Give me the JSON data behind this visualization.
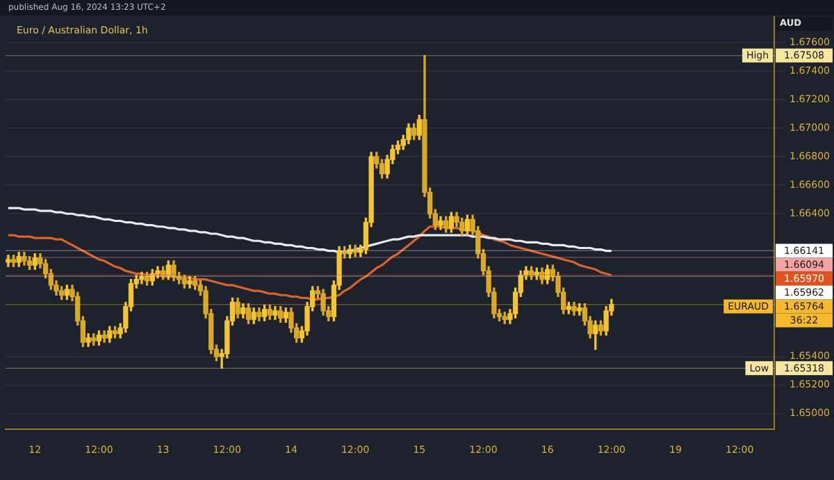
{
  "chart_data": {
    "type": "candlestick",
    "title": "Euro / Australian Dollar, 1h",
    "subtitle": "published Aug 16, 2024 13:23 UTC+2",
    "ylabel": "AUD",
    "colors": [
      "#f5c431",
      "#d9a826",
      "#f5c431",
      "#d9a826",
      "#d9a826",
      "#f5c431",
      "#d9a826",
      "#d9a826",
      "#d9a826",
      "#d9a826",
      "#d9a826",
      "#f5c431",
      "#d9a826",
      "#d9a826",
      "#d9a826",
      "#f5c431",
      "#d9a826",
      "#f5c431",
      "#d9a826",
      "#f5c431",
      "#d9a826",
      "#f5c431",
      "#f5c431",
      "#f5c431",
      "#f5c431",
      "#f5c431",
      "#d9a826",
      "#f5c431",
      "#f5c431",
      "#d9a826",
      "#f5c431",
      "#d9a826",
      "#d9a826",
      "#d9a826",
      "#f5c431",
      "#d9a826",
      "#d9a826",
      "#d9a826",
      "#d9a826",
      "#d9a826",
      "#f5c431",
      "#f5c431",
      "#f5c431",
      "#d9a826",
      "#f5c431",
      "#d9a826",
      "#f5c431",
      "#d9a826",
      "#f5c431",
      "#d9a826",
      "#f5c431",
      "#d9a826",
      "#f5c431",
      "#d9a826",
      "#d9a826",
      "#f5c431",
      "#f5c431",
      "#f5c431",
      "#d9a826",
      "#d9a826",
      "#d9a826",
      "#f5c431",
      "#f5c431",
      "#d9a826",
      "#f5c431",
      "#d9a826",
      "#f5c431",
      "#f5c431",
      "#f5c431",
      "#d9a826",
      "#d9a826",
      "#f5c431",
      "#f5c431",
      "#f5c431",
      "#f5c431",
      "#f5c431",
      "#d9a826",
      "#f5c431",
      "#d9a826",
      "#d9a826",
      "#d9a826",
      "#f5c431",
      "#d9a826",
      "#f5c431",
      "#d9a826",
      "#d9a826",
      "#f5c431",
      "#d9a826",
      "#d9a826",
      "#d9a826",
      "#d9a826",
      "#d9a826",
      "#d9a826",
      "#d9a826",
      "#f5c431",
      "#f5c431",
      "#f5c431",
      "#f5c431",
      "#d9a826",
      "#f5c431",
      "#d9a826",
      "#f5c431",
      "#d9a826",
      "#d9a826",
      "#d9a826",
      "#f5c431",
      "#d9a826",
      "#f5c431",
      "#d9a826",
      "#d9a826",
      "#f5c431",
      "#d9a826",
      "#f5c431",
      "#f5c431",
      null,
      null,
      null,
      null,
      null,
      null,
      null,
      null,
      null,
      null,
      null,
      null,
      null,
      null,
      null,
      null,
      null,
      null,
      null,
      null,
      null,
      null,
      null,
      null,
      null,
      null,
      null,
      null,
      null,
      null
    ],
    "categories": [
      null,
      null,
      null,
      null,
      null,
      "12",
      null,
      null,
      null,
      null,
      null,
      null,
      null,
      null,
      null,
      null,
      null,
      "12:00",
      null,
      null,
      null,
      null,
      null,
      null,
      null,
      null,
      null,
      null,
      null,
      "13",
      null,
      null,
      null,
      null,
      null,
      null,
      null,
      null,
      null,
      null,
      null,
      "12:00",
      null,
      null,
      null,
      null,
      null,
      null,
      null,
      null,
      null,
      null,
      null,
      "14",
      null,
      null,
      null,
      null,
      null,
      null,
      null,
      null,
      null,
      null,
      null,
      "12:00",
      null,
      null,
      null,
      null,
      null,
      null,
      null,
      null,
      null,
      null,
      null,
      "15",
      null,
      null,
      null,
      null,
      null,
      null,
      null,
      null,
      null,
      null,
      null,
      "12:00",
      null,
      null,
      null,
      null,
      null,
      null,
      null,
      null,
      null,
      null,
      null,
      "16",
      null,
      null,
      null,
      null,
      null,
      null,
      null,
      null,
      null,
      null,
      null,
      "12:00",
      null,
      null,
      null,
      null,
      null,
      null,
      null,
      null,
      null,
      null,
      null,
      "19",
      null,
      null,
      null,
      null,
      null,
      null,
      null,
      null,
      null,
      null,
      null,
      "12:00",
      null,
      null,
      null,
      null,
      null,
      null
    ],
    "ohlc": [
      [
        1.6606,
        1.6611,
        1.6603,
        1.6608
      ],
      [
        1.6608,
        1.6611,
        1.6603,
        1.6606
      ],
      [
        1.6606,
        1.6613,
        1.6603,
        1.661
      ],
      [
        1.661,
        1.6613,
        1.6604,
        1.6607
      ],
      [
        1.6607,
        1.661,
        1.6601,
        1.6604
      ],
      [
        1.6604,
        1.6612,
        1.6601,
        1.6609
      ],
      [
        1.6609,
        1.6612,
        1.6602,
        1.6605
      ],
      [
        1.6605,
        1.6608,
        1.6595,
        1.6598
      ],
      [
        1.6598,
        1.6601,
        1.6587,
        1.659
      ],
      [
        1.659,
        1.6593,
        1.6583,
        1.6586
      ],
      [
        1.6586,
        1.6589,
        1.658,
        1.6583
      ],
      [
        1.6583,
        1.659,
        1.658,
        1.6587
      ],
      [
        1.6587,
        1.659,
        1.6579,
        1.6582
      ],
      [
        1.6582,
        1.6585,
        1.6562,
        1.6565
      ],
      [
        1.6565,
        1.6568,
        1.6547,
        1.655
      ],
      [
        1.655,
        1.6556,
        1.6547,
        1.6553
      ],
      [
        1.6553,
        1.6556,
        1.6548,
        1.6551
      ],
      [
        1.6551,
        1.6558,
        1.6548,
        1.6555
      ],
      [
        1.6555,
        1.6558,
        1.655,
        1.6553
      ],
      [
        1.6553,
        1.6561,
        1.655,
        1.6558
      ],
      [
        1.6558,
        1.6561,
        1.6553,
        1.6556
      ],
      [
        1.6556,
        1.6563,
        1.6553,
        1.656
      ],
      [
        1.656,
        1.6578,
        1.6557,
        1.6575
      ],
      [
        1.6575,
        1.6594,
        1.6572,
        1.6591
      ],
      [
        1.6591,
        1.6597,
        1.6588,
        1.6594
      ],
      [
        1.6594,
        1.6599,
        1.6591,
        1.6596
      ],
      [
        1.6596,
        1.6599,
        1.659,
        1.6593
      ],
      [
        1.6593,
        1.6601,
        1.659,
        1.6598
      ],
      [
        1.6598,
        1.6603,
        1.6595,
        1.66
      ],
      [
        1.66,
        1.6603,
        1.6594,
        1.6597
      ],
      [
        1.6597,
        1.6607,
        1.6594,
        1.6604
      ],
      [
        1.6604,
        1.6607,
        1.6593,
        1.6596
      ],
      [
        1.6596,
        1.6599,
        1.6591,
        1.6594
      ],
      [
        1.6594,
        1.6597,
        1.6588,
        1.6591
      ],
      [
        1.6591,
        1.6596,
        1.6588,
        1.6593
      ],
      [
        1.6593,
        1.6596,
        1.6587,
        1.659
      ],
      [
        1.659,
        1.6593,
        1.6583,
        1.6586
      ],
      [
        1.6586,
        1.6589,
        1.6567,
        1.657
      ],
      [
        1.657,
        1.6573,
        1.6542,
        1.6545
      ],
      [
        1.6545,
        1.6548,
        1.6537,
        1.654
      ],
      [
        1.654,
        1.6545,
        1.65318,
        1.6542
      ],
      [
        1.6542,
        1.6568,
        1.6539,
        1.6565
      ],
      [
        1.6565,
        1.6581,
        1.6562,
        1.6578
      ],
      [
        1.6578,
        1.6581,
        1.6567,
        1.657
      ],
      [
        1.657,
        1.6577,
        1.6567,
        1.6574
      ],
      [
        1.6574,
        1.6577,
        1.6563,
        1.6566
      ],
      [
        1.6566,
        1.6574,
        1.6563,
        1.6571
      ],
      [
        1.6571,
        1.6574,
        1.6565,
        1.6568
      ],
      [
        1.6568,
        1.6576,
        1.6565,
        1.6573
      ],
      [
        1.6573,
        1.6576,
        1.6566,
        1.6569
      ],
      [
        1.6569,
        1.6575,
        1.6566,
        1.6572
      ],
      [
        1.6572,
        1.6575,
        1.6564,
        1.6567
      ],
      [
        1.6567,
        1.6574,
        1.6564,
        1.6571
      ],
      [
        1.6571,
        1.6574,
        1.6557,
        1.656
      ],
      [
        1.656,
        1.6563,
        1.655,
        1.6553
      ],
      [
        1.6553,
        1.6561,
        1.655,
        1.6558
      ],
      [
        1.6558,
        1.6578,
        1.6555,
        1.6575
      ],
      [
        1.6575,
        1.6589,
        1.6572,
        1.6586
      ],
      [
        1.6586,
        1.6589,
        1.6581,
        1.6584
      ],
      [
        1.6584,
        1.6587,
        1.6569,
        1.6572
      ],
      [
        1.6572,
        1.6575,
        1.6565,
        1.6568
      ],
      [
        1.6568,
        1.6593,
        1.6565,
        1.659
      ],
      [
        1.659,
        1.6617,
        1.6587,
        1.6614
      ],
      [
        1.6614,
        1.6617,
        1.6609,
        1.6612
      ],
      [
        1.6612,
        1.6618,
        1.6609,
        1.6615
      ],
      [
        1.6615,
        1.6618,
        1.661,
        1.6613
      ],
      [
        1.6613,
        1.6618,
        1.661,
        1.6615
      ],
      [
        1.6615,
        1.6637,
        1.6612,
        1.6634
      ],
      [
        1.6634,
        1.6683,
        1.6631,
        1.668
      ],
      [
        1.668,
        1.6683,
        1.6672,
        1.6675
      ],
      [
        1.6675,
        1.6678,
        1.6665,
        1.6668
      ],
      [
        1.6668,
        1.6681,
        1.6665,
        1.6678
      ],
      [
        1.6678,
        1.6688,
        1.6675,
        1.6685
      ],
      [
        1.6685,
        1.6691,
        1.6682,
        1.6688
      ],
      [
        1.6688,
        1.6695,
        1.6685,
        1.6692
      ],
      [
        1.6692,
        1.6703,
        1.6689,
        1.67
      ],
      [
        1.67,
        1.6703,
        1.6692,
        1.6695
      ],
      [
        1.6695,
        1.6709,
        1.6692,
        1.6706
      ],
      [
        1.6706,
        1.67508,
        1.6652,
        1.6655
      ],
      [
        1.6655,
        1.6658,
        1.6637,
        1.664
      ],
      [
        1.664,
        1.6643,
        1.6629,
        1.6632
      ],
      [
        1.6632,
        1.6638,
        1.6629,
        1.6635
      ],
      [
        1.6635,
        1.6638,
        1.6627,
        1.663
      ],
      [
        1.663,
        1.6641,
        1.6627,
        1.6638
      ],
      [
        1.6638,
        1.6641,
        1.6631,
        1.6634
      ],
      [
        1.6634,
        1.6637,
        1.6625,
        1.6628
      ],
      [
        1.6628,
        1.6639,
        1.6625,
        1.6636
      ],
      [
        1.6636,
        1.6639,
        1.6625,
        1.6628
      ],
      [
        1.6628,
        1.6631,
        1.6609,
        1.6612
      ],
      [
        1.6612,
        1.6615,
        1.6597,
        1.66
      ],
      [
        1.66,
        1.6603,
        1.6582,
        1.6585
      ],
      [
        1.6585,
        1.6588,
        1.6567,
        1.657
      ],
      [
        1.657,
        1.6573,
        1.6565,
        1.6568
      ],
      [
        1.6568,
        1.6571,
        1.6563,
        1.6566
      ],
      [
        1.6566,
        1.6573,
        1.6563,
        1.657
      ],
      [
        1.657,
        1.6588,
        1.6567,
        1.6585
      ],
      [
        1.6585,
        1.66,
        1.6582,
        1.6597
      ],
      [
        1.6597,
        1.6603,
        1.6594,
        1.66
      ],
      [
        1.66,
        1.6603,
        1.6594,
        1.6597
      ],
      [
        1.6597,
        1.6602,
        1.6594,
        1.6599
      ],
      [
        1.6599,
        1.6602,
        1.6591,
        1.6594
      ],
      [
        1.6594,
        1.6604,
        1.6591,
        1.6601
      ],
      [
        1.6601,
        1.6604,
        1.6593,
        1.6596
      ],
      [
        1.6596,
        1.6599,
        1.6582,
        1.6585
      ],
      [
        1.6585,
        1.6588,
        1.657,
        1.6573
      ],
      [
        1.6573,
        1.6578,
        1.657,
        1.6575
      ],
      [
        1.6575,
        1.6578,
        1.6569,
        1.6572
      ],
      [
        1.6572,
        1.6577,
        1.6569,
        1.6574
      ],
      [
        1.6574,
        1.6577,
        1.6562,
        1.6565
      ],
      [
        1.6565,
        1.6568,
        1.6553,
        1.6556
      ],
      [
        1.6556,
        1.6565,
        1.6545,
        1.6562
      ],
      [
        1.6562,
        1.6565,
        1.6555,
        1.6558
      ],
      [
        1.6558,
        1.6575,
        1.6555,
        1.6572
      ],
      [
        1.6572,
        1.658,
        1.6569,
        1.65764
      ],
      null,
      null,
      null,
      null,
      null,
      null,
      null,
      null,
      null,
      null,
      null,
      null,
      null,
      null,
      null,
      null,
      null,
      null,
      null,
      null,
      null,
      null,
      null,
      null,
      null,
      null,
      null,
      null,
      null,
      null
    ],
    "series": [
      {
        "type": "line",
        "color": "#e8e8ee",
        "values": [
          1.6644,
          1.6644,
          1.6644,
          1.6643,
          1.6643,
          1.6643,
          1.6642,
          1.6642,
          1.6642,
          1.6641,
          1.6641,
          1.664,
          1.664,
          1.6639,
          1.6639,
          1.6638,
          1.6638,
          1.6637,
          1.6636,
          1.6636,
          1.6635,
          1.6635,
          1.6634,
          1.6634,
          1.6633,
          1.6633,
          1.6632,
          1.6632,
          1.6631,
          1.6631,
          1.663,
          1.663,
          1.6629,
          1.6629,
          1.6628,
          1.6628,
          1.6627,
          1.6627,
          1.6626,
          1.6626,
          1.6625,
          1.6624,
          1.6624,
          1.6623,
          1.6623,
          1.6622,
          1.6621,
          1.6621,
          1.662,
          1.662,
          1.6619,
          1.6619,
          1.6618,
          1.6618,
          1.6617,
          1.6617,
          1.6616,
          1.6616,
          1.6615,
          1.6615,
          1.6614,
          1.6614,
          1.6613,
          1.6613,
          1.6614,
          1.6615,
          1.6616,
          1.6617,
          1.6618,
          1.6619,
          1.662,
          1.6621,
          1.6622,
          1.6622,
          1.6623,
          1.6624,
          1.6624,
          1.6625,
          1.6625,
          1.6625,
          1.6625,
          1.6625,
          1.6625,
          1.6625,
          1.6625,
          1.6625,
          1.6625,
          1.6624,
          1.6624,
          1.6624,
          1.6623,
          1.6623,
          1.6622,
          1.6622,
          1.6622,
          1.6621,
          1.6621,
          1.662,
          1.662,
          1.662,
          1.6619,
          1.6619,
          1.6618,
          1.6618,
          1.6618,
          1.6617,
          1.6617,
          1.6616,
          1.6616,
          1.6616,
          1.6615,
          1.6615,
          1.6614,
          1.6614,
          null,
          null,
          null,
          null,
          null,
          null,
          null,
          null,
          null,
          null,
          null,
          null,
          null,
          null,
          null,
          null,
          null,
          null,
          null,
          null,
          null,
          null,
          null,
          null,
          null,
          null,
          null,
          null,
          null,
          null
        ]
      },
      {
        "type": "line",
        "color": "#d9652b",
        "values": [
          1.6625,
          1.6625,
          1.6624,
          1.6624,
          1.6624,
          1.6623,
          1.6623,
          1.6623,
          1.6623,
          1.6622,
          1.6622,
          1.662,
          1.6618,
          1.6616,
          1.6614,
          1.6612,
          1.661,
          1.6608,
          1.6607,
          1.6605,
          1.6603,
          1.6602,
          1.66,
          1.6599,
          1.6598,
          1.6598,
          1.6597,
          1.6597,
          1.6597,
          1.6596,
          1.6596,
          1.6596,
          1.6595,
          1.6595,
          1.6595,
          1.6594,
          1.6594,
          1.6594,
          1.6593,
          1.6592,
          1.6591,
          1.659,
          1.659,
          1.6589,
          1.6588,
          1.6587,
          1.6586,
          1.6586,
          1.6585,
          1.6584,
          1.6584,
          1.6583,
          1.6583,
          1.6582,
          1.6582,
          1.6581,
          1.6581,
          1.658,
          1.658,
          1.6581,
          1.6581,
          1.6582,
          1.6583,
          1.6586,
          1.6588,
          1.6591,
          1.6594,
          1.6596,
          1.6599,
          1.6602,
          1.6604,
          1.6607,
          1.661,
          1.6612,
          1.6615,
          1.6618,
          1.6621,
          1.6624,
          1.6628,
          1.6631,
          1.6631,
          1.6631,
          1.663,
          1.663,
          1.663,
          1.6629,
          1.6629,
          1.6628,
          1.6627,
          1.6625,
          1.6624,
          1.6622,
          1.6621,
          1.662,
          1.6618,
          1.6617,
          1.6616,
          1.6615,
          1.6614,
          1.6613,
          1.6612,
          1.6611,
          1.661,
          1.6609,
          1.6608,
          1.6607,
          1.6606,
          1.6604,
          1.6603,
          1.6602,
          1.6601,
          1.6599,
          1.6598,
          1.6597,
          null,
          null,
          null,
          null,
          null,
          null,
          null,
          null,
          null,
          null,
          null,
          null,
          null,
          null,
          null,
          null,
          null,
          null,
          null,
          null,
          null,
          null,
          null,
          null,
          null,
          null,
          null,
          null,
          null,
          null
        ]
      }
    ],
    "ylim": [
      1.6489,
      1.6778
    ],
    "yticks": [
      {
        "value": 1.65,
        "label": "1.65000"
      },
      {
        "value": 1.652,
        "label": "1.65200"
      },
      {
        "value": 1.654,
        "label": "1.65400"
      },
      {
        "value": 1.664,
        "label": "1.66400"
      },
      {
        "value": 1.666,
        "label": "1.66600"
      },
      {
        "value": 1.668,
        "label": "1.66800"
      },
      {
        "value": 1.67,
        "label": "1.67000"
      },
      {
        "value": 1.672,
        "label": "1.67200"
      },
      {
        "value": 1.674,
        "label": "1.67400"
      },
      {
        "value": 1.676,
        "label": "1.67600"
      }
    ],
    "grid": "y",
    "ref_lines": [
      {
        "axis": "y",
        "value": 1.67508,
        "label": "1.67508",
        "color": "#f7e6a0"
      },
      {
        "axis": "y",
        "value": 1.66141,
        "label": "1.66141",
        "color": "#ffffff"
      },
      {
        "axis": "y",
        "value": 1.66094,
        "label": "1.66094",
        "color": "#f4a3a3"
      },
      {
        "axis": "y",
        "value": 1.6597,
        "label": "1.65970",
        "color": "#e0531c"
      },
      {
        "axis": "y",
        "value": 1.65962,
        "label": "1.65962",
        "color": "#ffffff"
      },
      {
        "axis": "y",
        "value": 1.65764,
        "label": "1.65764",
        "color": "#f5b82e"
      },
      {
        "axis": "y",
        "value": 1.65318,
        "label": "1.65318",
        "color": "#f7e6a0"
      }
    ],
    "annotations": [
      {
        "text": "High",
        "y": 1.67508
      },
      {
        "text": "EURAUD",
        "y": 1.65764
      },
      {
        "text": "Low",
        "y": 1.65318
      },
      "36:22"
    ]
  }
}
